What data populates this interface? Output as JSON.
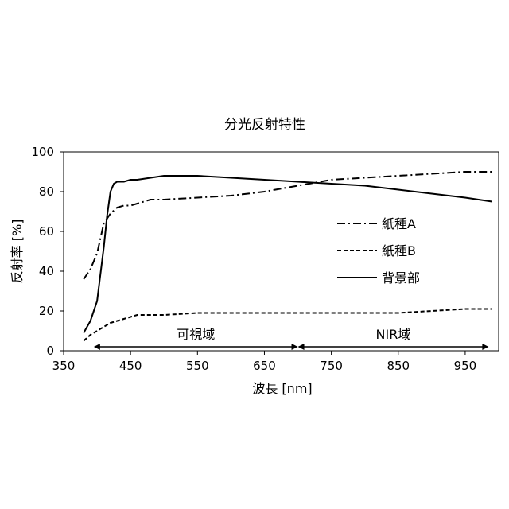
{
  "chart_data": {
    "type": "line",
    "title": "分光反射特性",
    "xlabel": "波長 [nm]",
    "ylabel": "反射率 [%]",
    "xlim": [
      350,
      1000
    ],
    "ylim": [
      0,
      100
    ],
    "xticks": [
      350,
      450,
      550,
      650,
      750,
      850,
      950
    ],
    "yticks": [
      0,
      20,
      40,
      60,
      80,
      100
    ],
    "grid": false,
    "legend_position": "right-middle",
    "series": [
      {
        "name": "紙種A",
        "dash": "dash-dot",
        "x": [
          380,
          390,
          400,
          410,
          420,
          430,
          440,
          450,
          460,
          480,
          500,
          550,
          600,
          650,
          700,
          750,
          800,
          850,
          900,
          950,
          990
        ],
        "values": [
          36,
          41,
          49,
          64,
          69,
          72,
          73,
          73,
          74,
          76,
          76,
          77,
          78,
          80,
          83,
          86,
          87,
          88,
          89,
          90,
          90
        ]
      },
      {
        "name": "紙種B",
        "dash": "dashed",
        "x": [
          380,
          390,
          400,
          410,
          420,
          430,
          440,
          450,
          460,
          480,
          500,
          550,
          600,
          650,
          700,
          750,
          800,
          850,
          900,
          950,
          990
        ],
        "values": [
          5,
          8,
          10,
          12,
          14,
          15,
          16,
          17,
          18,
          18,
          18,
          19,
          19,
          19,
          19,
          19,
          19,
          19,
          20,
          21,
          21
        ]
      },
      {
        "name": "背景部",
        "dash": "solid",
        "x": [
          380,
          390,
          400,
          410,
          415,
          420,
          425,
          430,
          440,
          450,
          460,
          480,
          500,
          520,
          550,
          600,
          650,
          700,
          750,
          800,
          850,
          900,
          950,
          990
        ],
        "values": [
          9,
          15,
          25,
          52,
          68,
          80,
          84,
          85,
          85,
          86,
          86,
          87,
          88,
          88,
          88,
          87,
          86,
          85,
          84,
          83,
          81,
          79,
          77,
          75
        ]
      }
    ],
    "annotations": [
      {
        "text": "可視域",
        "from": 395,
        "to": 700
      },
      {
        "text": "NIR域",
        "from": 700,
        "to": 985
      }
    ]
  }
}
